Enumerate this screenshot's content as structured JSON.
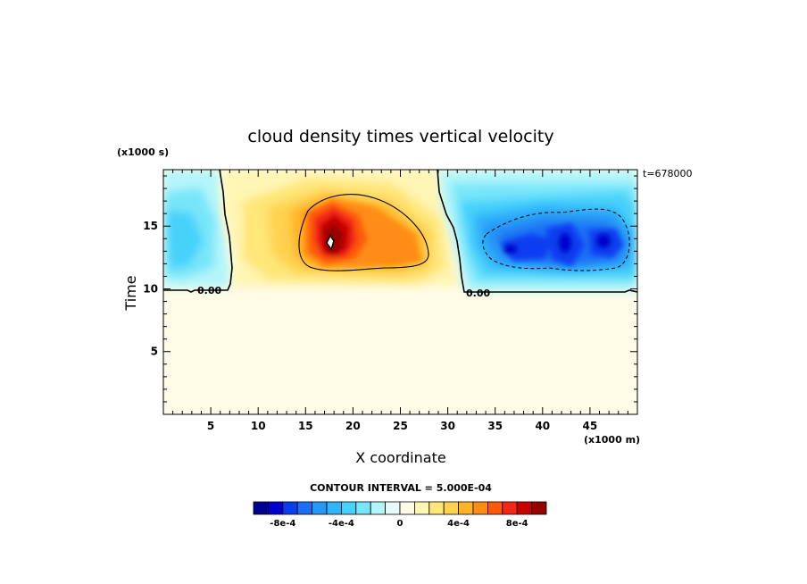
{
  "chart_data": {
    "type": "heatmap",
    "title": "cloud density times vertical velocity",
    "xlabel": "X coordinate",
    "ylabel": "Time",
    "x_unit_label": "(x1000 m)",
    "y_unit_label": "(x1000 s)",
    "time_label": "t=678000",
    "xlim": [
      0,
      50
    ],
    "ylim": [
      0,
      19.5
    ],
    "x_ticks": [
      5,
      10,
      15,
      20,
      25,
      30,
      35,
      40,
      45
    ],
    "x_tick_labels": [
      "5",
      "10",
      "15",
      "20",
      "25",
      "30",
      "35",
      "40",
      "45"
    ],
    "y_ticks": [
      5,
      10,
      15
    ],
    "y_tick_labels": [
      "5",
      "10",
      "15"
    ],
    "contour_labels": [
      "0.00",
      "0.00"
    ],
    "contour_interval_text": "CONTOUR INTERVAL = 5.000E-04",
    "colorbar": {
      "colors": [
        "#00008c",
        "#0000cd",
        "#0a3cf0",
        "#1e6ef5",
        "#2896f5",
        "#32b4fa",
        "#46d2fa",
        "#78e6fa",
        "#b4f5fa",
        "#e6fafa",
        "#fffae6",
        "#fff5b4",
        "#ffe678",
        "#ffd250",
        "#ffb428",
        "#ff8c14",
        "#ff5a0a",
        "#f02814",
        "#c80000",
        "#960000"
      ],
      "tick_labels": [
        "-8e-4",
        "-4e-4",
        "0",
        "4e-4",
        "8e-4"
      ],
      "tick_values": [
        -0.0008,
        -0.0004,
        0,
        0.0004,
        0.0008
      ],
      "vmin": -0.001,
      "vmax": 0.001
    },
    "background_color": "#fffbe6",
    "features": [
      {
        "name": "left-negative-region",
        "x_range": [
          0,
          7
        ],
        "y_range": [
          10,
          19.5
        ],
        "peak_value": -0.0003
      },
      {
        "name": "central-positive-core",
        "center_x": 17.5,
        "center_y": 13.7,
        "peak_value": 0.001
      },
      {
        "name": "right-negative-region",
        "x_range": [
          31,
          50
        ],
        "y_range": [
          10,
          19.5
        ],
        "peak_value": -0.0008
      }
    ]
  }
}
